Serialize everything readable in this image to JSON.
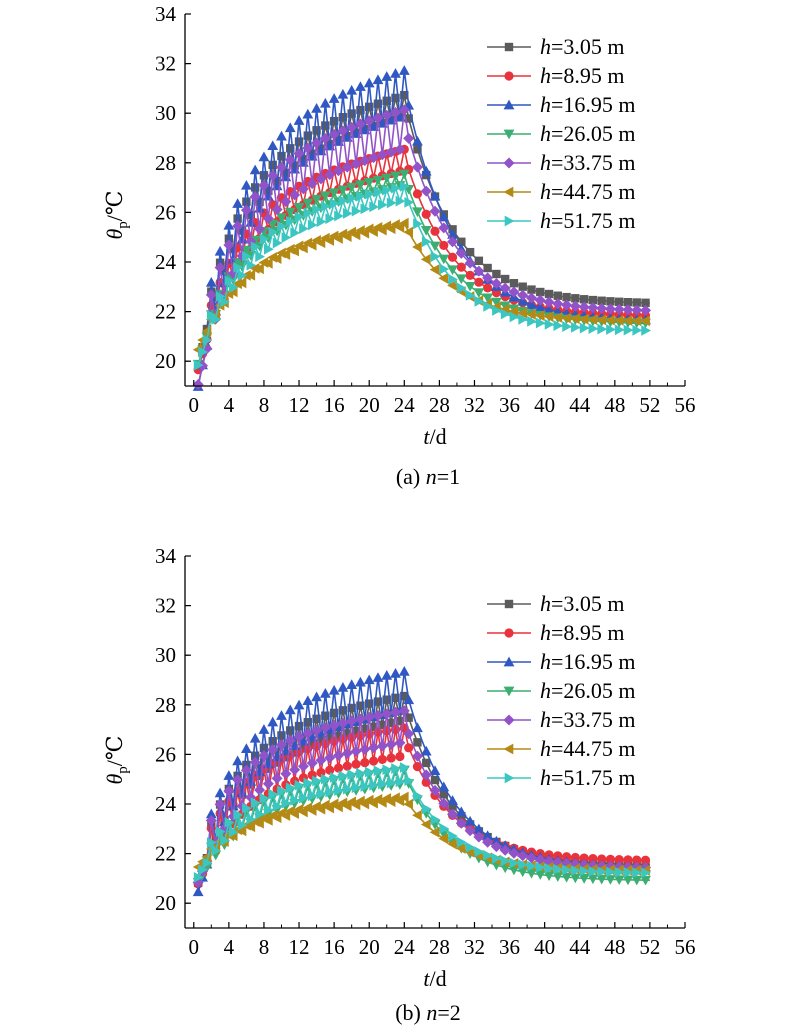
{
  "figure": {
    "caption_a": {
      "prefix": "(a) ",
      "var": "n",
      "suffix": "=1"
    },
    "caption_b": {
      "prefix": "(b) ",
      "var": "n",
      "suffix": "=2"
    },
    "xlabel": {
      "var": "t",
      "unit": "/d"
    },
    "ylabel": {
      "var": "θ",
      "sub": "p",
      "unit": "/℃"
    }
  },
  "series_style": [
    {
      "color": "#5b5b5b",
      "marker": "square"
    },
    {
      "color": "#e8323c",
      "marker": "circle"
    },
    {
      "color": "#2f58c2",
      "marker": "triangle-up"
    },
    {
      "color": "#3dae72",
      "marker": "triangle-down"
    },
    {
      "color": "#9253c8",
      "marker": "diamond"
    },
    {
      "color": "#b58a14",
      "marker": "triangle-left"
    },
    {
      "color": "#3cc6c2",
      "marker": "triangle-right"
    }
  ],
  "chart_data": [
    {
      "type": "line",
      "caption": "(a) n=1",
      "xlabel": "t/d",
      "ylabel": "θp/℃",
      "xlim": [
        -1,
        56
      ],
      "ylim": [
        19,
        34
      ],
      "xticks": [
        "0",
        "4",
        "8",
        "12",
        "16",
        "20",
        "24",
        "28",
        "32",
        "36",
        "40",
        "44",
        "48",
        "52",
        "56"
      ],
      "yticks": [
        "20",
        "22",
        "24",
        "26",
        "28",
        "30",
        "32",
        "34"
      ],
      "legend": "top-right",
      "grid": false,
      "series": [
        {
          "name": "h=3.05 m",
          "label": {
            "var": "h",
            "text": "=3.05 m"
          },
          "start": 20.6,
          "heat_peak": 30.8,
          "amp": 0.6,
          "end": 22.3
        },
        {
          "name": "h=8.95 m",
          "label": {
            "var": "h",
            "text": "=8.95 m"
          },
          "start": 20.5,
          "heat_peak": 28.6,
          "amp": 0.6,
          "end": 21.8
        },
        {
          "name": "h=16.95 m",
          "label": {
            "var": "h",
            "text": "=16.95 m"
          },
          "start": 20.8,
          "heat_peak": 31.8,
          "amp": 1.3,
          "end": 21.6
        },
        {
          "name": "h=26.05 m",
          "label": {
            "var": "h",
            "text": "=26.05 m"
          },
          "start": 20.3,
          "heat_peak": 27.6,
          "amp": 0.3,
          "end": 21.5
        },
        {
          "name": "h=33.75 m",
          "label": {
            "var": "h",
            "text": "=33.75 m"
          },
          "start": 20.6,
          "heat_peak": 30.2,
          "amp": 1.1,
          "end": 22.0
        },
        {
          "name": "h=44.75 m",
          "label": {
            "var": "h",
            "text": "=44.75 m"
          },
          "start": 20.6,
          "heat_peak": 25.6,
          "amp": 0.1,
          "end": 21.6
        },
        {
          "name": "h=51.75 m",
          "label": {
            "var": "h",
            "text": "=51.75 m"
          },
          "start": 20.4,
          "heat_peak": 27.1,
          "amp": 0.4,
          "end": 21.2
        }
      ]
    },
    {
      "type": "line",
      "caption": "(b) n=2",
      "xlabel": "t/d",
      "ylabel": "θp/℃",
      "xlim": [
        -1,
        56
      ],
      "ylim": [
        19,
        34
      ],
      "xticks": [
        "0",
        "4",
        "8",
        "12",
        "16",
        "20",
        "24",
        "28",
        "32",
        "36",
        "40",
        "44",
        "48",
        "52",
        "56"
      ],
      "yticks": [
        "20",
        "22",
        "24",
        "26",
        "28",
        "30",
        "32",
        "34"
      ],
      "legend": "top-right",
      "grid": false,
      "series": [
        {
          "name": "h=3.05 m",
          "label": {
            "var": "h",
            "text": "=3.05 m"
          },
          "start": 21.8,
          "heat_peak": 28.4,
          "amp": 0.7,
          "end": 21.5
        },
        {
          "name": "h=8.95 m",
          "label": {
            "var": "h",
            "text": "=8.95 m"
          },
          "start": 21.9,
          "heat_peak": 27.1,
          "amp": 0.8,
          "end": 21.7
        },
        {
          "name": "h=16.95 m",
          "label": {
            "var": "h",
            "text": "=16.95 m"
          },
          "start": 22.0,
          "heat_peak": 29.4,
          "amp": 1.1,
          "end": 21.4
        },
        {
          "name": "h=26.05 m",
          "label": {
            "var": "h",
            "text": "=26.05 m"
          },
          "start": 21.4,
          "heat_peak": 25.4,
          "amp": 0.4,
          "end": 20.9
        },
        {
          "name": "h=33.75 m",
          "label": {
            "var": "h",
            "text": "=33.75 m"
          },
          "start": 22.1,
          "heat_peak": 27.8,
          "amp": 0.9,
          "end": 21.4
        },
        {
          "name": "h=44.75 m",
          "label": {
            "var": "h",
            "text": "=44.75 m"
          },
          "start": 21.6,
          "heat_peak": 24.3,
          "amp": 0.1,
          "end": 21.3
        },
        {
          "name": "h=51.75 m",
          "label": {
            "var": "h",
            "text": "=51.75 m"
          },
          "start": 21.6,
          "heat_peak": 25.5,
          "amp": 0.4,
          "end": 21.2
        }
      ]
    }
  ]
}
